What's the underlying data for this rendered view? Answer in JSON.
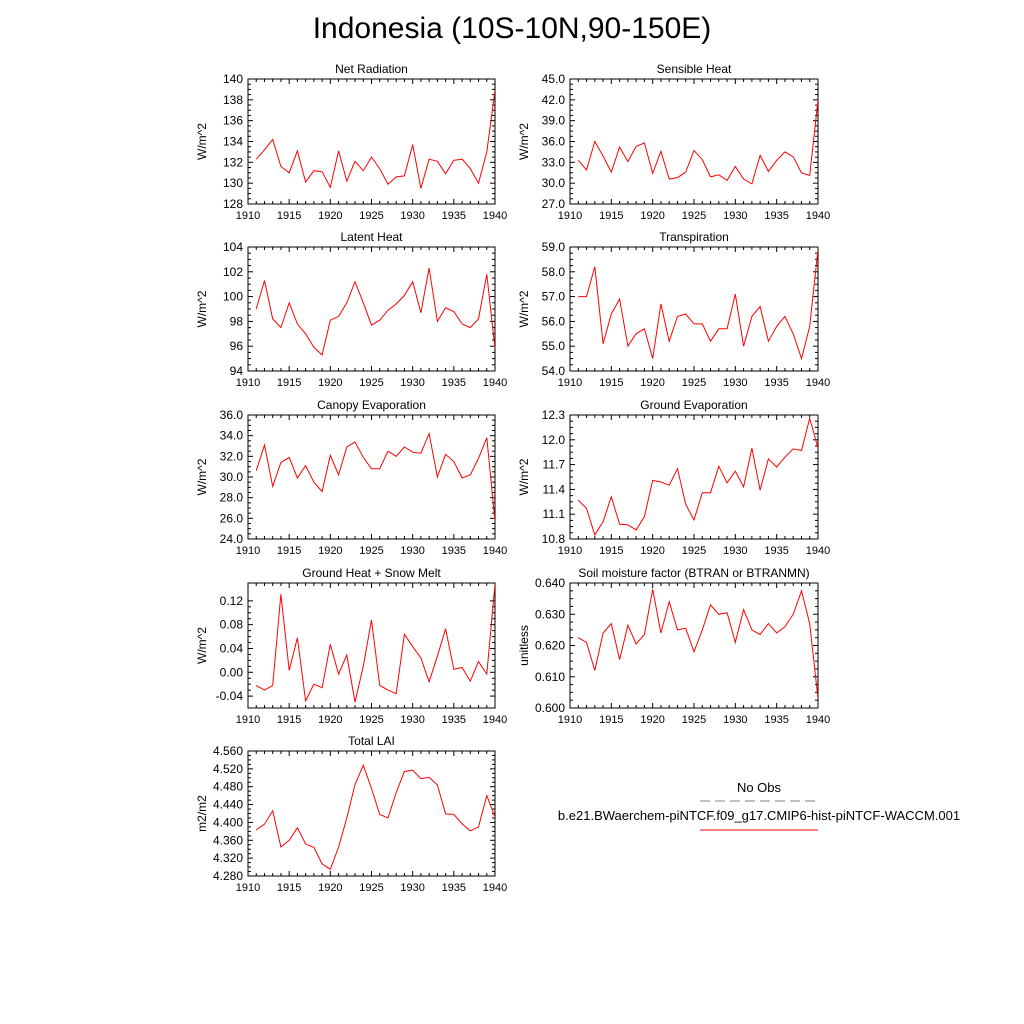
{
  "title": "Indonesia (10S-10N,90-150E)",
  "colors": {
    "series": "#ff0000",
    "axis": "#000000",
    "obs_line": "#808080"
  },
  "legend": {
    "obs_label": "No Obs",
    "model_label": "b.e21.BWaerchem-piNTCF.f09_g17.CMIP6-hist-piNTCF-WACCM.001"
  },
  "chart_data": [
    {
      "type": "line",
      "title": "Net Radiation",
      "ylabel": "W/m^2",
      "xlim": [
        1910,
        1940
      ],
      "ylim": [
        128,
        140
      ],
      "xticks": [
        "1910",
        "1915",
        "1920",
        "1925",
        "1930",
        "1935",
        "1940"
      ],
      "yticks": [
        "128",
        "130",
        "132",
        "134",
        "136",
        "138",
        "140"
      ],
      "x": [
        1911,
        1912,
        1913,
        1914,
        1915,
        1916,
        1917,
        1918,
        1919,
        1920,
        1921,
        1922,
        1923,
        1924,
        1925,
        1926,
        1927,
        1928,
        1929,
        1930,
        1931,
        1932,
        1933,
        1934,
        1935,
        1936,
        1937,
        1938,
        1939,
        1940
      ],
      "values": [
        132.3,
        133.2,
        134.2,
        131.6,
        131.0,
        133.1,
        130.1,
        131.2,
        131.1,
        129.6,
        133.1,
        130.2,
        132.1,
        131.2,
        132.5,
        131.4,
        129.9,
        130.6,
        130.7,
        133.7,
        129.5,
        132.3,
        132.1,
        130.9,
        132.2,
        132.3,
        131.4,
        130.0,
        133.0,
        138.9
      ],
      "series": [
        {
          "values": [
            132.3,
            133.2,
            134.2,
            131.6,
            131.0,
            133.1,
            130.1,
            131.2,
            131.1,
            129.6,
            133.1,
            130.2,
            132.1,
            131.2,
            132.5,
            131.4,
            129.9,
            130.6,
            130.7,
            133.7,
            129.5,
            132.3,
            132.1,
            130.9,
            132.2,
            132.3,
            131.4,
            130.0,
            133.0,
            138.9
          ]
        }
      ]
    },
    {
      "type": "line",
      "title": "Sensible Heat",
      "ylabel": "W/m^2",
      "xlim": [
        1910,
        1940
      ],
      "ylim": [
        27.0,
        45.0
      ],
      "xticks": [
        "1910",
        "1915",
        "1920",
        "1925",
        "1930",
        "1935",
        "1940"
      ],
      "yticks": [
        "27.0",
        "30.0",
        "33.0",
        "36.0",
        "39.0",
        "42.0",
        "45.0"
      ],
      "x": [
        1911,
        1912,
        1913,
        1914,
        1915,
        1916,
        1917,
        1918,
        1919,
        1920,
        1921,
        1922,
        1923,
        1924,
        1925,
        1926,
        1927,
        1928,
        1929,
        1930,
        1931,
        1932,
        1933,
        1934,
        1935,
        1936,
        1937,
        1938,
        1939,
        1940
      ],
      "values": [
        33.3,
        31.9,
        36.0,
        33.9,
        31.6,
        35.2,
        33.1,
        35.3,
        35.8,
        31.4,
        34.6,
        30.6,
        30.8,
        31.6,
        34.7,
        33.4,
        30.9,
        31.2,
        30.4,
        32.4,
        30.6,
        29.9,
        34.0,
        31.7,
        33.3,
        34.5,
        33.8,
        31.5,
        31.1,
        42.0
      ],
      "series": [
        {
          "values": [
            33.3,
            31.9,
            36.0,
            33.9,
            31.6,
            35.2,
            33.1,
            35.3,
            35.8,
            31.4,
            34.6,
            30.6,
            30.8,
            31.6,
            34.7,
            33.4,
            30.9,
            31.2,
            30.4,
            32.4,
            30.6,
            29.9,
            34.0,
            31.7,
            33.3,
            34.5,
            33.8,
            31.5,
            31.1,
            42.0
          ]
        }
      ]
    },
    {
      "type": "line",
      "title": "Latent Heat",
      "ylabel": "W/m^2",
      "xlim": [
        1910,
        1940
      ],
      "ylim": [
        94,
        104
      ],
      "xticks": [
        "1910",
        "1915",
        "1920",
        "1925",
        "1930",
        "1935",
        "1940"
      ],
      "yticks": [
        "94",
        "96",
        "98",
        "100",
        "102",
        "104"
      ],
      "x": [
        1911,
        1912,
        1913,
        1914,
        1915,
        1916,
        1917,
        1918,
        1919,
        1920,
        1921,
        1922,
        1923,
        1924,
        1925,
        1926,
        1927,
        1928,
        1929,
        1930,
        1931,
        1932,
        1933,
        1934,
        1935,
        1936,
        1937,
        1938,
        1939,
        1940
      ],
      "values": [
        99.0,
        101.3,
        98.2,
        97.5,
        99.5,
        97.8,
        97.0,
        95.9,
        95.3,
        98.1,
        98.4,
        99.5,
        101.2,
        99.5,
        97.7,
        98.1,
        98.9,
        99.4,
        100.1,
        101.2,
        98.7,
        102.3,
        98.0,
        99.1,
        98.8,
        97.8,
        97.5,
        98.2,
        101.8,
        95.8
      ],
      "series": [
        {
          "values": [
            99.0,
            101.3,
            98.2,
            97.5,
            99.5,
            97.8,
            97.0,
            95.9,
            95.3,
            98.1,
            98.4,
            99.5,
            101.2,
            99.5,
            97.7,
            98.1,
            98.9,
            99.4,
            100.1,
            101.2,
            98.7,
            102.3,
            98.0,
            99.1,
            98.8,
            97.8,
            97.5,
            98.2,
            101.8,
            95.8
          ]
        }
      ]
    },
    {
      "type": "line",
      "title": "Transpiration",
      "ylabel": "W/m^2",
      "xlim": [
        1910,
        1940
      ],
      "ylim": [
        54.0,
        59.0
      ],
      "xticks": [
        "1910",
        "1915",
        "1920",
        "1925",
        "1930",
        "1935",
        "1940"
      ],
      "yticks": [
        "54.0",
        "55.0",
        "56.0",
        "57.0",
        "58.0",
        "59.0"
      ],
      "x": [
        1911,
        1912,
        1913,
        1914,
        1915,
        1916,
        1917,
        1918,
        1919,
        1920,
        1921,
        1922,
        1923,
        1924,
        1925,
        1926,
        1927,
        1928,
        1929,
        1930,
        1931,
        1932,
        1933,
        1934,
        1935,
        1936,
        1937,
        1938,
        1939,
        1940
      ],
      "values": [
        57.0,
        57.0,
        58.2,
        55.1,
        56.3,
        56.9,
        55.0,
        55.5,
        55.7,
        54.5,
        56.7,
        55.2,
        56.2,
        56.3,
        55.9,
        55.9,
        55.2,
        55.7,
        55.7,
        57.1,
        55.0,
        56.2,
        56.6,
        55.2,
        55.8,
        56.2,
        55.5,
        54.5,
        55.8,
        58.9
      ],
      "series": [
        {
          "values": [
            57.0,
            57.0,
            58.2,
            55.1,
            56.3,
            56.9,
            55.0,
            55.5,
            55.7,
            54.5,
            56.7,
            55.2,
            56.2,
            56.3,
            55.9,
            55.9,
            55.2,
            55.7,
            55.7,
            57.1,
            55.0,
            56.2,
            56.6,
            55.2,
            55.8,
            56.2,
            55.5,
            54.5,
            55.8,
            58.9
          ]
        }
      ]
    },
    {
      "type": "line",
      "title": "Canopy Evaporation",
      "ylabel": "W/m^2",
      "xlim": [
        1910,
        1940
      ],
      "ylim": [
        24.0,
        36.0
      ],
      "xticks": [
        "1910",
        "1915",
        "1920",
        "1925",
        "1930",
        "1935",
        "1940"
      ],
      "yticks": [
        "24.0",
        "26.0",
        "28.0",
        "30.0",
        "32.0",
        "34.0",
        "36.0"
      ],
      "x": [
        1911,
        1912,
        1913,
        1914,
        1915,
        1916,
        1917,
        1918,
        1919,
        1920,
        1921,
        1922,
        1923,
        1924,
        1925,
        1926,
        1927,
        1928,
        1929,
        1930,
        1931,
        1932,
        1933,
        1934,
        1935,
        1936,
        1937,
        1938,
        1939,
        1940
      ],
      "values": [
        30.6,
        33.1,
        29.1,
        31.4,
        31.9,
        29.9,
        31.1,
        29.5,
        28.6,
        32.1,
        30.2,
        32.9,
        33.4,
        31.9,
        30.8,
        30.8,
        32.5,
        32.0,
        32.9,
        32.4,
        32.3,
        34.2,
        30.0,
        32.2,
        31.5,
        29.9,
        30.2,
        31.8,
        33.8,
        25.7
      ],
      "series": [
        {
          "values": [
            30.6,
            33.1,
            29.1,
            31.4,
            31.9,
            29.9,
            31.1,
            29.5,
            28.6,
            32.1,
            30.2,
            32.9,
            33.4,
            31.9,
            30.8,
            30.8,
            32.5,
            32.0,
            32.9,
            32.4,
            32.3,
            34.2,
            30.0,
            32.2,
            31.5,
            29.9,
            30.2,
            31.8,
            33.8,
            25.7
          ]
        }
      ]
    },
    {
      "type": "line",
      "title": "Ground Evaporation",
      "ylabel": "W/m^2",
      "xlim": [
        1910,
        1940
      ],
      "ylim": [
        10.8,
        12.3
      ],
      "xticks": [
        "1910",
        "1915",
        "1920",
        "1925",
        "1930",
        "1935",
        "1940"
      ],
      "yticks": [
        "10.8",
        "11.1",
        "11.4",
        "11.7",
        "12.0",
        "12.3"
      ],
      "x": [
        1911,
        1912,
        1913,
        1914,
        1915,
        1916,
        1917,
        1918,
        1919,
        1920,
        1921,
        1922,
        1923,
        1924,
        1925,
        1926,
        1927,
        1928,
        1929,
        1930,
        1931,
        1932,
        1933,
        1934,
        1935,
        1936,
        1937,
        1938,
        1939,
        1940
      ],
      "values": [
        11.27,
        11.17,
        10.85,
        11.01,
        11.31,
        10.98,
        10.97,
        10.91,
        11.07,
        11.51,
        11.49,
        11.45,
        11.65,
        11.22,
        11.03,
        11.36,
        11.36,
        11.68,
        11.48,
        11.62,
        11.43,
        11.9,
        11.39,
        11.77,
        11.67,
        11.79,
        11.89,
        11.87,
        12.26,
        11.9
      ],
      "series": [
        {
          "values": [
            11.27,
            11.17,
            10.85,
            11.01,
            11.31,
            10.98,
            10.97,
            10.91,
            11.07,
            11.51,
            11.49,
            11.45,
            11.65,
            11.22,
            11.03,
            11.36,
            11.36,
            11.68,
            11.48,
            11.62,
            11.43,
            11.9,
            11.39,
            11.77,
            11.67,
            11.79,
            11.89,
            11.87,
            12.26,
            11.9
          ]
        }
      ]
    },
    {
      "type": "line",
      "title": "Ground Heat + Snow Melt",
      "ylabel": "W/m^2",
      "xlim": [
        1910,
        1940
      ],
      "ylim": [
        -0.06,
        0.15
      ],
      "xticks": [
        "1910",
        "1915",
        "1920",
        "1925",
        "1930",
        "1935",
        "1940"
      ],
      "yticks": [
        "-0.04",
        "0.00",
        "0.04",
        "0.08",
        "0.12"
      ],
      "ytick_values": [
        -0.04,
        0.0,
        0.04,
        0.08,
        0.12
      ],
      "x": [
        1911,
        1912,
        1913,
        1914,
        1915,
        1916,
        1917,
        1918,
        1919,
        1920,
        1921,
        1922,
        1923,
        1924,
        1925,
        1926,
        1927,
        1928,
        1929,
        1930,
        1931,
        1932,
        1933,
        1934,
        1935,
        1936,
        1937,
        1938,
        1939,
        1940
      ],
      "values": [
        -0.022,
        -0.03,
        -0.022,
        0.131,
        0.003,
        0.058,
        -0.048,
        -0.02,
        -0.026,
        0.047,
        -0.003,
        0.029,
        -0.05,
        0.01,
        0.088,
        -0.022,
        -0.03,
        -0.036,
        0.064,
        0.043,
        0.024,
        -0.016,
        0.027,
        0.073,
        0.005,
        0.008,
        -0.015,
        0.018,
        -0.003,
        0.148
      ],
      "series": [
        {
          "values": [
            -0.022,
            -0.03,
            -0.022,
            0.131,
            0.003,
            0.058,
            -0.048,
            -0.02,
            -0.026,
            0.047,
            -0.003,
            0.029,
            -0.05,
            0.01,
            0.088,
            -0.022,
            -0.03,
            -0.036,
            0.064,
            0.043,
            0.024,
            -0.016,
            0.027,
            0.073,
            0.005,
            0.008,
            -0.015,
            0.018,
            -0.003,
            0.148
          ]
        }
      ]
    },
    {
      "type": "line",
      "title": "Soil moisture factor (BTRAN or BTRANMN)",
      "ylabel": "unitless",
      "xlim": [
        1910,
        1940
      ],
      "ylim": [
        0.6,
        0.64
      ],
      "xticks": [
        "1910",
        "1915",
        "1920",
        "1925",
        "1930",
        "1935",
        "1940"
      ],
      "yticks": [
        "0.600",
        "0.610",
        "0.620",
        "0.630",
        "0.640"
      ],
      "x": [
        1911,
        1912,
        1913,
        1914,
        1915,
        1916,
        1917,
        1918,
        1919,
        1920,
        1921,
        1922,
        1923,
        1924,
        1925,
        1926,
        1927,
        1928,
        1929,
        1930,
        1931,
        1932,
        1933,
        1934,
        1935,
        1936,
        1937,
        1938,
        1939,
        1940
      ],
      "values": [
        0.6225,
        0.621,
        0.612,
        0.624,
        0.627,
        0.6155,
        0.6265,
        0.6205,
        0.6235,
        0.638,
        0.624,
        0.634,
        0.625,
        0.6255,
        0.618,
        0.625,
        0.633,
        0.63,
        0.6305,
        0.621,
        0.6315,
        0.625,
        0.6235,
        0.627,
        0.624,
        0.626,
        0.63,
        0.6375,
        0.627,
        0.603
      ],
      "series": [
        {
          "values": [
            0.6225,
            0.621,
            0.612,
            0.624,
            0.627,
            0.6155,
            0.6265,
            0.6205,
            0.6235,
            0.638,
            0.624,
            0.634,
            0.625,
            0.6255,
            0.618,
            0.625,
            0.633,
            0.63,
            0.6305,
            0.621,
            0.6315,
            0.625,
            0.6235,
            0.627,
            0.624,
            0.626,
            0.63,
            0.6375,
            0.627,
            0.603
          ]
        }
      ]
    },
    {
      "type": "line",
      "title": "Total LAI",
      "ylabel": "m2/m2",
      "xlim": [
        1910,
        1940
      ],
      "ylim": [
        4.28,
        4.56
      ],
      "xticks": [
        "1910",
        "1915",
        "1920",
        "1925",
        "1930",
        "1935",
        "1940"
      ],
      "yticks": [
        "4.280",
        "4.320",
        "4.360",
        "4.400",
        "4.440",
        "4.480",
        "4.520",
        "4.560"
      ],
      "x": [
        1911,
        1912,
        1913,
        1914,
        1915,
        1916,
        1917,
        1918,
        1919,
        1920,
        1921,
        1922,
        1923,
        1924,
        1925,
        1926,
        1927,
        1928,
        1929,
        1930,
        1931,
        1932,
        1933,
        1934,
        1935,
        1936,
        1937,
        1938,
        1939,
        1940
      ],
      "values": [
        4.383,
        4.396,
        4.426,
        4.345,
        4.36,
        4.388,
        4.352,
        4.344,
        4.307,
        4.295,
        4.345,
        4.41,
        4.485,
        4.528,
        4.476,
        4.418,
        4.41,
        4.467,
        4.514,
        4.517,
        4.498,
        4.501,
        4.484,
        4.419,
        4.418,
        4.397,
        4.381,
        4.39,
        4.46,
        4.412
      ],
      "series": [
        {
          "values": [
            4.383,
            4.396,
            4.426,
            4.345,
            4.36,
            4.388,
            4.352,
            4.344,
            4.307,
            4.295,
            4.345,
            4.41,
            4.485,
            4.528,
            4.476,
            4.418,
            4.41,
            4.467,
            4.514,
            4.517,
            4.498,
            4.501,
            4.484,
            4.419,
            4.418,
            4.397,
            4.381,
            4.39,
            4.46,
            4.412
          ]
        }
      ]
    }
  ]
}
